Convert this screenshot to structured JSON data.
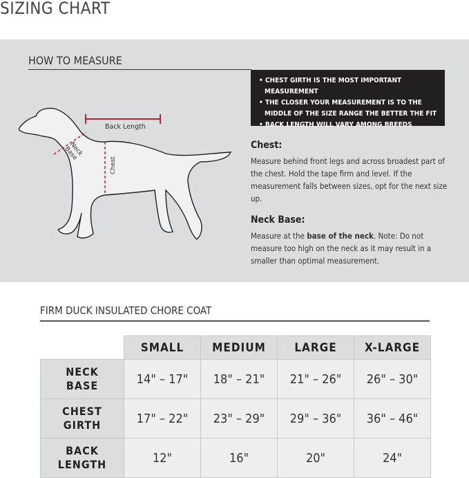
{
  "title": "SIZING CHART",
  "how_to_measure": {
    "heading": "HOW TO MEASURE",
    "tips": [
      "• CHEST GIRTH IS THE MOST IMPORTANT MEASUREMENT",
      "• THE CLOSER YOUR MEASUREMENT IS TO THE MIDDLE OF THE SIZE RANGE THE BETTER THE FIT",
      "• BACK LENGTH WILL VARY AMONG BREEDS"
    ],
    "diagram_labels": {
      "back_length": "Back Length",
      "neck": "Neck",
      "base": "Base",
      "chest": "Chest"
    },
    "chest": {
      "heading": "Chest:",
      "text": "Measure behind front legs and across broadest part of the chest. Hold the tape firm and level. If the measurement falls between sizes, opt for the next size up."
    },
    "neck_base": {
      "heading": "Neck Base:",
      "text_before": "Measure at the ",
      "text_bold": "base of the neck",
      "text_after": ". Note: Do not measure too high on the neck as it may result in a smaller than optimal measurement."
    },
    "accent_color": "#b5262f"
  },
  "table": {
    "title": "FIRM DUCK INSULATED CHORE COAT",
    "columns": [
      "SMALL",
      "MEDIUM",
      "LARGE",
      "X-LARGE"
    ],
    "rows": [
      {
        "label1": "NECK",
        "label2": "BASE",
        "values": [
          "14\" – 17\"",
          "18\" – 21\"",
          "21\" – 26\"",
          "26\" – 30\""
        ]
      },
      {
        "label1": "CHEST",
        "label2": "GIRTH",
        "values": [
          "17\" – 22\"",
          "23\" – 29\"",
          "29\" – 36\"",
          "36\" – 46\""
        ]
      },
      {
        "label1": "BACK",
        "label2": "LENGTH",
        "values": [
          "12\"",
          "16\"",
          "20\"",
          "24\""
        ]
      }
    ]
  }
}
